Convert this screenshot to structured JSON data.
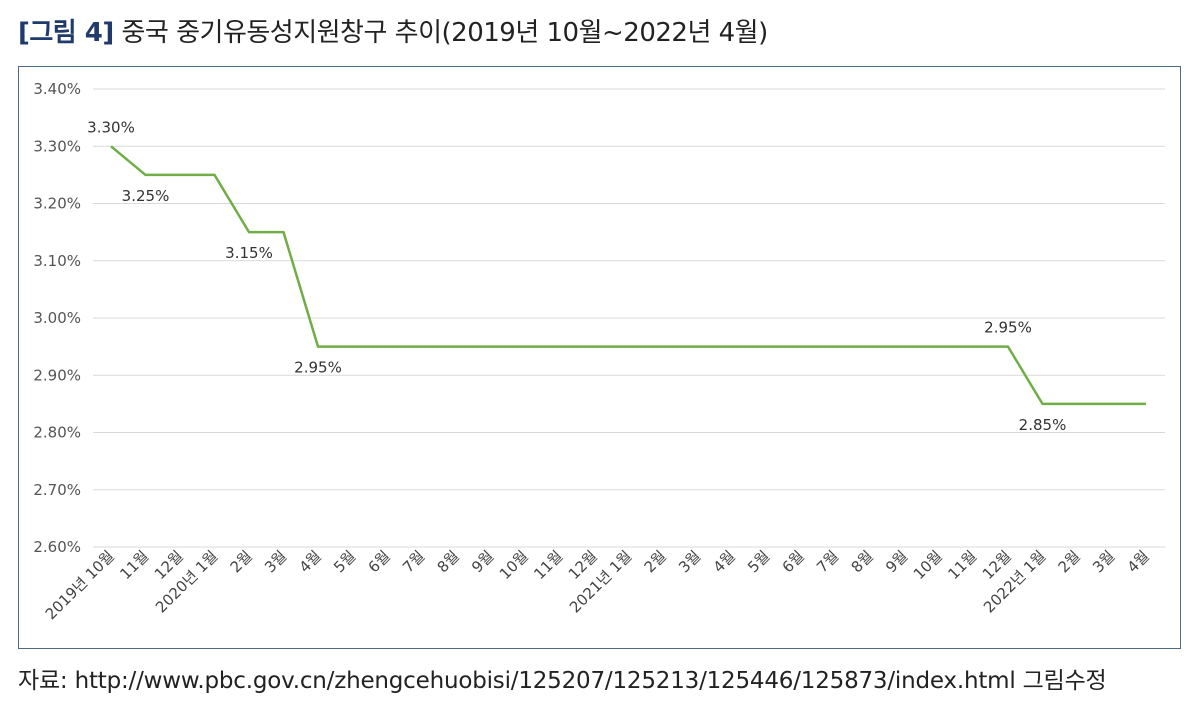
{
  "title": {
    "prefix": "[그림 4]",
    "text": "중국 중기유동성지원창구 추이(2019년 10월~2022년 4월)"
  },
  "source": "자료: http://www.pbc.gov.cn/zhengcehuobisi/125207/125213/125446/125873/index.html 그림수정",
  "chart_data": {
    "type": "line",
    "categories": [
      "2019년 10월",
      "11월",
      "12월",
      "2020년 1월",
      "2월",
      "3월",
      "4월",
      "5월",
      "6월",
      "7월",
      "8월",
      "9월",
      "10월",
      "11월",
      "12월",
      "2021년 1월",
      "2월",
      "3월",
      "4월",
      "5월",
      "6월",
      "7월",
      "8월",
      "9월",
      "10월",
      "11월",
      "12월",
      "2022년 1월",
      "2월",
      "3월",
      "4월"
    ],
    "series": [
      {
        "values": [
          3.3,
          3.25,
          3.25,
          3.25,
          3.15,
          3.15,
          2.95,
          2.95,
          2.95,
          2.95,
          2.95,
          2.95,
          2.95,
          2.95,
          2.95,
          2.95,
          2.95,
          2.95,
          2.95,
          2.95,
          2.95,
          2.95,
          2.95,
          2.95,
          2.95,
          2.95,
          2.95,
          2.85,
          2.85,
          2.85,
          2.85
        ]
      }
    ],
    "y_ticks": [
      "2.60%",
      "2.70%",
      "2.80%",
      "2.90%",
      "3.00%",
      "3.10%",
      "3.20%",
      "3.30%",
      "3.40%"
    ],
    "ylim": [
      2.6,
      3.4
    ],
    "grid": true,
    "line_color": "#70ad47",
    "data_labels": [
      {
        "index": 0,
        "text": "3.30%",
        "position": "above"
      },
      {
        "index": 1,
        "text": "3.25%",
        "position": "below"
      },
      {
        "index": 4,
        "text": "3.15%",
        "position": "below"
      },
      {
        "index": 6,
        "text": "2.95%",
        "position": "below"
      },
      {
        "index": 26,
        "text": "2.95%",
        "position": "above"
      },
      {
        "index": 27,
        "text": "2.85%",
        "position": "below"
      }
    ]
  }
}
